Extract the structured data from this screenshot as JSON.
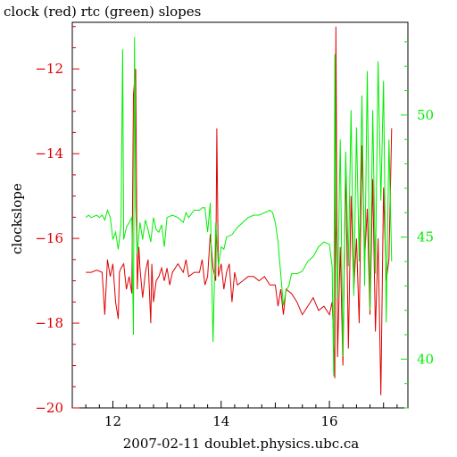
{
  "chart_data": {
    "type": "line",
    "title": "clock (red) rtc (green) slopes",
    "xlabel": "2007-02-11 doublet.physics.ubc.ca",
    "ylabel": "clockslope",
    "xlim": [
      11.25,
      17.45
    ],
    "ylim_left": [
      -20,
      -10.9
    ],
    "ylim_right": [
      38,
      53.8
    ],
    "x_ticks": [
      "12",
      "14",
      "16"
    ],
    "y_left_ticks": [
      "-12",
      "-14",
      "-16",
      "-18",
      "-20"
    ],
    "y_right_ticks": [
      "50",
      "45",
      "40"
    ],
    "colors": {
      "clock": "#dd0000",
      "rtc": "#00ee00",
      "axis": "#000000"
    },
    "grid": false,
    "series": [
      {
        "name": "clock",
        "axis": "left",
        "color": "#dd0000",
        "x": [
          11.5,
          11.6,
          11.7,
          11.8,
          11.85,
          11.9,
          11.95,
          12.0,
          12.05,
          12.1,
          12.12,
          12.15,
          12.2,
          12.25,
          12.3,
          12.35,
          12.38,
          12.42,
          12.45,
          12.48,
          12.5,
          12.55,
          12.6,
          12.65,
          12.7,
          12.72,
          12.75,
          12.8,
          12.85,
          12.9,
          12.95,
          13.0,
          13.05,
          13.1,
          13.2,
          13.3,
          13.35,
          13.4,
          13.5,
          13.6,
          13.65,
          13.7,
          13.75,
          13.8,
          13.85,
          13.9,
          13.92,
          13.95,
          14.0,
          14.05,
          14.1,
          14.15,
          14.2,
          14.25,
          14.3,
          14.4,
          14.5,
          14.6,
          14.7,
          14.8,
          14.9,
          15.0,
          15.05,
          15.1,
          15.15,
          15.2,
          15.3,
          15.4,
          15.5,
          15.6,
          15.7,
          15.8,
          15.9,
          16.0,
          16.05,
          16.08,
          16.1,
          16.12,
          16.15,
          16.2,
          16.25,
          16.3,
          16.35,
          16.4,
          16.45,
          16.5,
          16.55,
          16.6,
          16.65,
          16.7,
          16.75,
          16.8,
          16.85,
          16.9,
          16.95,
          17.0,
          17.05,
          17.1,
          17.15
        ],
        "y": [
          -16.8,
          -16.8,
          -16.75,
          -16.8,
          -17.8,
          -16.5,
          -16.9,
          -16.6,
          -17.5,
          -17.9,
          -16.8,
          -16.7,
          -16.6,
          -17.2,
          -16.9,
          -17.3,
          -12.6,
          -12.0,
          -17.2,
          -16.2,
          -16.7,
          -17.4,
          -16.8,
          -16.5,
          -18.0,
          -16.6,
          -17.5,
          -17.0,
          -16.9,
          -16.7,
          -17.0,
          -16.7,
          -17.1,
          -16.8,
          -16.6,
          -16.8,
          -16.5,
          -16.9,
          -16.8,
          -16.8,
          -16.5,
          -17.1,
          -16.9,
          -15.9,
          -16.7,
          -17.0,
          -13.4,
          -16.9,
          -16.6,
          -17.2,
          -16.8,
          -16.6,
          -17.5,
          -16.8,
          -17.1,
          -17.0,
          -16.9,
          -16.9,
          -17.0,
          -16.9,
          -17.1,
          -17.1,
          -17.6,
          -17.2,
          -17.8,
          -17.2,
          -17.3,
          -17.5,
          -17.8,
          -17.6,
          -17.4,
          -17.7,
          -17.6,
          -17.8,
          -17.5,
          -18.4,
          -19.3,
          -11.0,
          -18.8,
          -16.2,
          -19.0,
          -14.2,
          -18.6,
          -15.0,
          -17.2,
          -16.0,
          -18.0,
          -13.8,
          -16.5,
          -15.3,
          -17.8,
          -14.6,
          -18.2,
          -16.0,
          -19.7,
          -14.8,
          -17.0,
          -16.5,
          -13.4
        ]
      },
      {
        "name": "rtc",
        "axis": "right",
        "color": "#00ee00",
        "x": [
          11.5,
          11.55,
          11.6,
          11.65,
          11.7,
          11.75,
          11.8,
          11.85,
          11.9,
          11.95,
          12.0,
          12.05,
          12.1,
          12.15,
          12.18,
          12.2,
          12.25,
          12.3,
          12.35,
          12.38,
          12.4,
          12.42,
          12.45,
          12.48,
          12.5,
          12.55,
          12.6,
          12.65,
          12.7,
          12.75,
          12.8,
          12.85,
          12.9,
          12.95,
          13.0,
          13.1,
          13.2,
          13.3,
          13.35,
          13.4,
          13.5,
          13.6,
          13.65,
          13.7,
          13.75,
          13.8,
          13.85,
          13.9,
          13.95,
          14.0,
          14.05,
          14.1,
          14.2,
          14.3,
          14.4,
          14.5,
          14.6,
          14.7,
          14.8,
          14.9,
          14.95,
          15.0,
          15.05,
          15.1,
          15.15,
          15.2,
          15.25,
          15.3,
          15.4,
          15.5,
          15.6,
          15.7,
          15.8,
          15.9,
          16.0,
          16.05,
          16.08,
          16.1,
          16.12,
          16.15,
          16.2,
          16.25,
          16.3,
          16.35,
          16.4,
          16.45,
          16.5,
          16.55,
          16.6,
          16.65,
          16.7,
          16.75,
          16.8,
          16.85,
          16.9,
          16.95,
          17.0,
          17.05,
          17.1,
          17.15
        ],
        "y": [
          45.8,
          45.9,
          45.8,
          45.85,
          45.9,
          45.8,
          45.9,
          45.7,
          46.1,
          45.8,
          44.9,
          45.2,
          44.5,
          45.5,
          52.7,
          44.9,
          45.4,
          45.6,
          45.8,
          41.0,
          53.2,
          46.2,
          44.3,
          45.1,
          45.6,
          44.9,
          45.7,
          45.3,
          44.8,
          45.8,
          45.3,
          45.2,
          45.5,
          44.6,
          45.8,
          45.9,
          45.8,
          45.6,
          46.0,
          45.8,
          46.1,
          46.1,
          46.2,
          46.2,
          45.2,
          46.4,
          40.7,
          45.6,
          43.8,
          44.6,
          44.5,
          45.0,
          45.1,
          45.4,
          45.6,
          45.8,
          45.9,
          45.9,
          46.0,
          46.1,
          46.0,
          45.6,
          44.8,
          43.5,
          42.2,
          42.8,
          43.0,
          43.5,
          43.5,
          43.6,
          44.0,
          44.2,
          44.6,
          44.8,
          44.7,
          43.8,
          39.3,
          52.5,
          45.5,
          42.5,
          49.0,
          40.1,
          48.5,
          43.8,
          50.2,
          42.6,
          49.5,
          44.0,
          50.8,
          43.0,
          51.8,
          42.0,
          50.2,
          43.5,
          52.2,
          46.5,
          51.4,
          41.5,
          49.0,
          44.0
        ]
      }
    ]
  }
}
